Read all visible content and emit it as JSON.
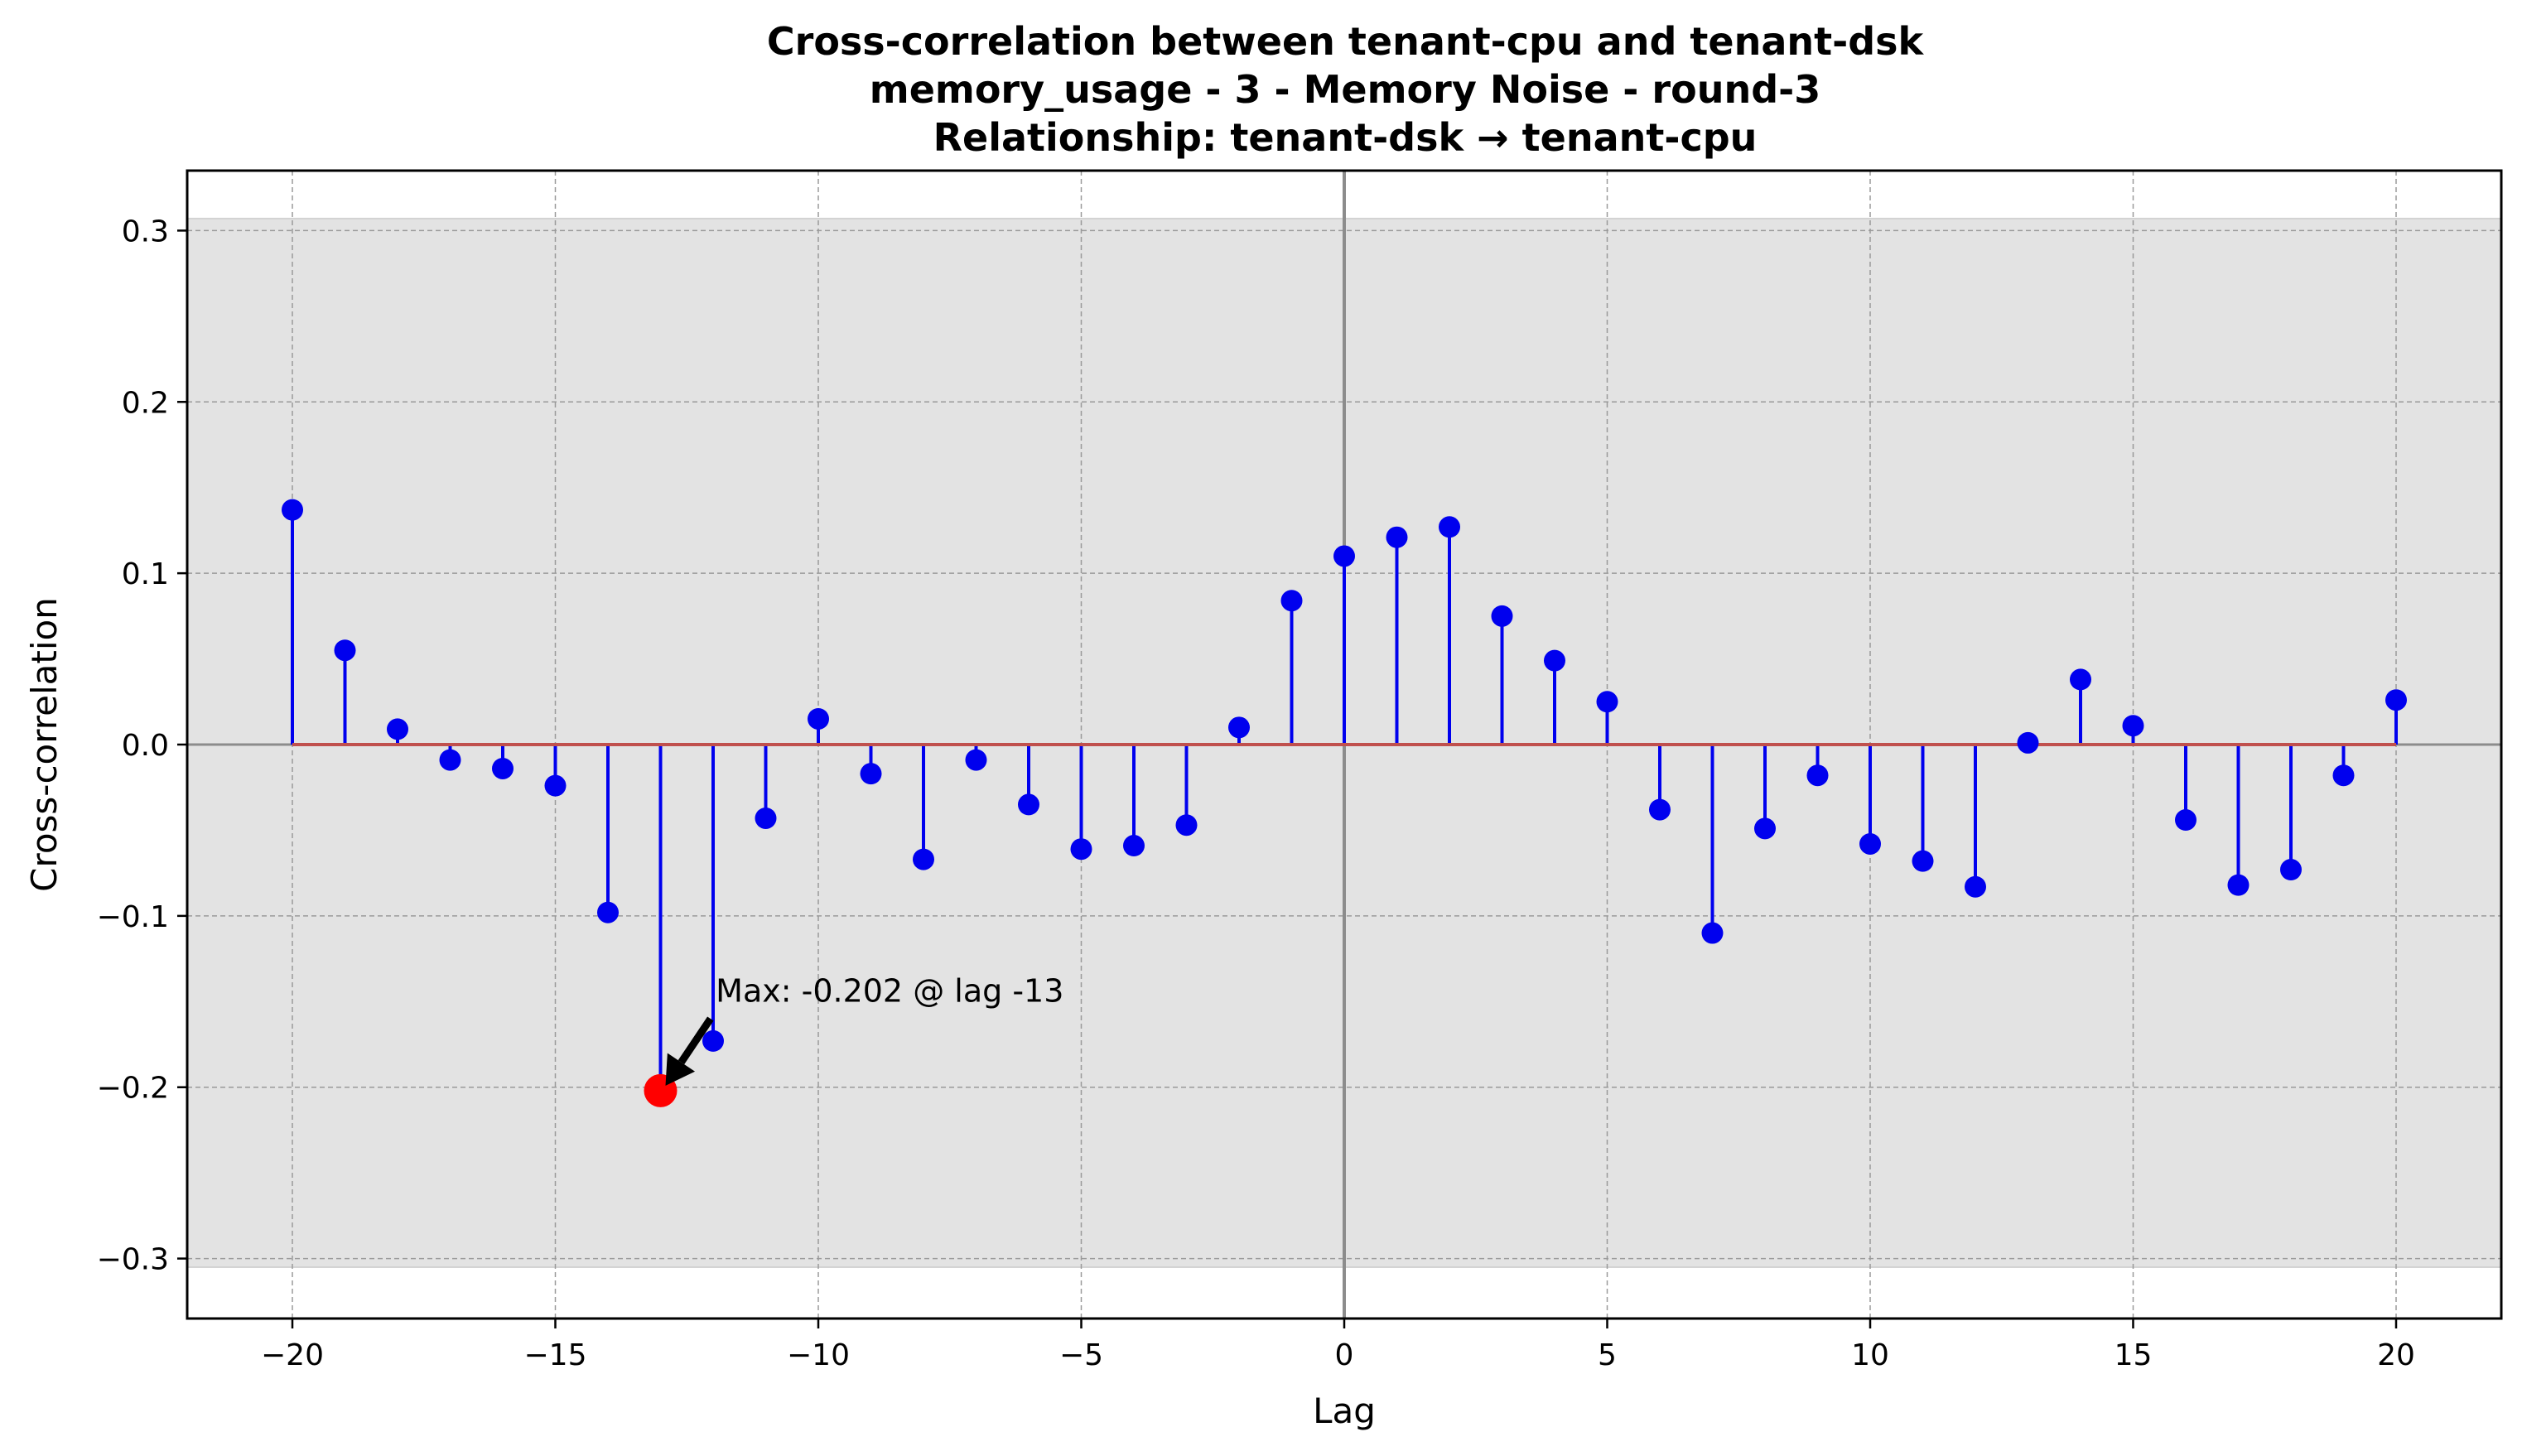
{
  "chart_data": {
    "type": "stem",
    "title": "Cross-correlation between tenant-cpu and tenant-dsk",
    "subtitle_lines": [
      "memory_usage - 3 - Memory Noise - round-3",
      "Relationship: tenant-dsk → tenant-cpu"
    ],
    "xlabel": "Lag",
    "ylabel": "Cross-correlation",
    "xlim": [
      -22,
      22
    ],
    "ylim": [
      -0.335,
      0.335
    ],
    "x_ticks": [
      -20,
      -15,
      -10,
      -5,
      0,
      5,
      10,
      15,
      20
    ],
    "x_tick_labels": [
      "−20",
      "−15",
      "−10",
      "−5",
      "0",
      "5",
      "10",
      "15",
      "20"
    ],
    "y_ticks": [
      -0.3,
      -0.2,
      -0.1,
      0.0,
      0.1,
      0.2,
      0.3
    ],
    "y_tick_labels": [
      "−0.3",
      "−0.2",
      "−0.1",
      "0.0",
      "0.1",
      "0.2",
      "0.3"
    ],
    "grid": true,
    "confidence_band": [
      -0.305,
      0.307
    ],
    "lags": [
      -20,
      -19,
      -18,
      -17,
      -16,
      -15,
      -14,
      -13,
      -12,
      -11,
      -10,
      -9,
      -8,
      -7,
      -6,
      -5,
      -4,
      -3,
      -2,
      -1,
      0,
      1,
      2,
      3,
      4,
      5,
      6,
      7,
      8,
      9,
      10,
      11,
      12,
      13,
      14,
      15,
      16,
      17,
      18,
      19,
      20
    ],
    "values": [
      0.137,
      0.055,
      0.009,
      -0.009,
      -0.014,
      -0.024,
      -0.098,
      -0.202,
      -0.173,
      -0.043,
      0.015,
      -0.017,
      -0.067,
      -0.009,
      -0.035,
      -0.061,
      -0.059,
      -0.047,
      0.01,
      0.084,
      0.11,
      0.121,
      0.127,
      0.075,
      0.049,
      0.025,
      -0.038,
      -0.11,
      -0.049,
      -0.018,
      -0.058,
      -0.068,
      -0.083,
      0.001,
      0.038,
      0.011,
      -0.044,
      -0.082,
      -0.073,
      -0.018,
      0.026
    ],
    "max": {
      "lag": -13,
      "value": -0.202,
      "label": "Max: -0.202 @ lag -13"
    },
    "colors": {
      "stem": "#0000ee",
      "marker": "#0000ee",
      "baseline": "#c0504d",
      "max_marker": "#ff0000",
      "band": "#e3e3e3",
      "zero_line": "#8c8c8c"
    }
  }
}
